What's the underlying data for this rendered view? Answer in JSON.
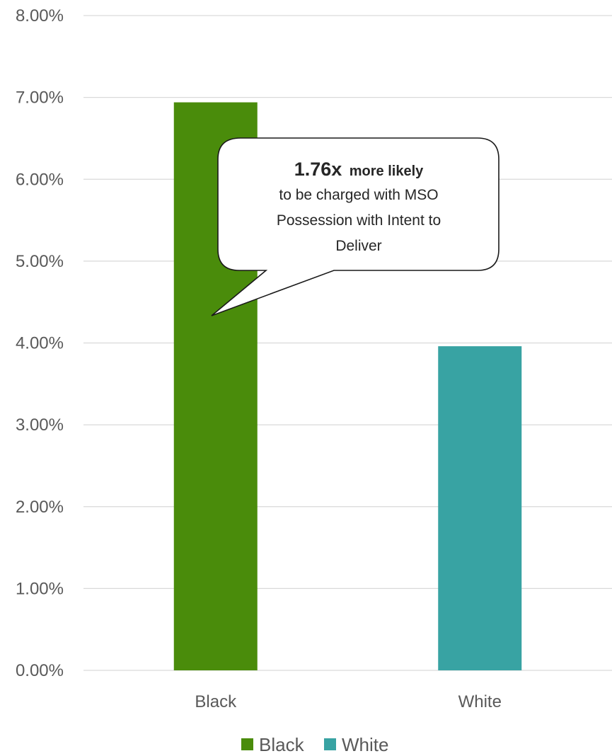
{
  "chart_data": {
    "type": "bar",
    "categories": [
      "Black",
      "White"
    ],
    "values": [
      6.94,
      3.96
    ],
    "colors": [
      "#4a8c0b",
      "#38a3a3"
    ],
    "ylim": [
      0,
      8
    ],
    "yticks": [
      "0.00%",
      "1.00%",
      "2.00%",
      "3.00%",
      "4.00%",
      "5.00%",
      "6.00%",
      "7.00%",
      "8.00%"
    ],
    "grid": true,
    "legend": {
      "placement": "bottom",
      "entries": [
        "Black",
        "White"
      ]
    },
    "annotation": {
      "target_category": "Black",
      "strong": "1.76x",
      "bold_rest": "more likely",
      "lines": [
        "to be charged with MSO",
        "Possession with Intent to",
        "Deliver"
      ]
    }
  }
}
